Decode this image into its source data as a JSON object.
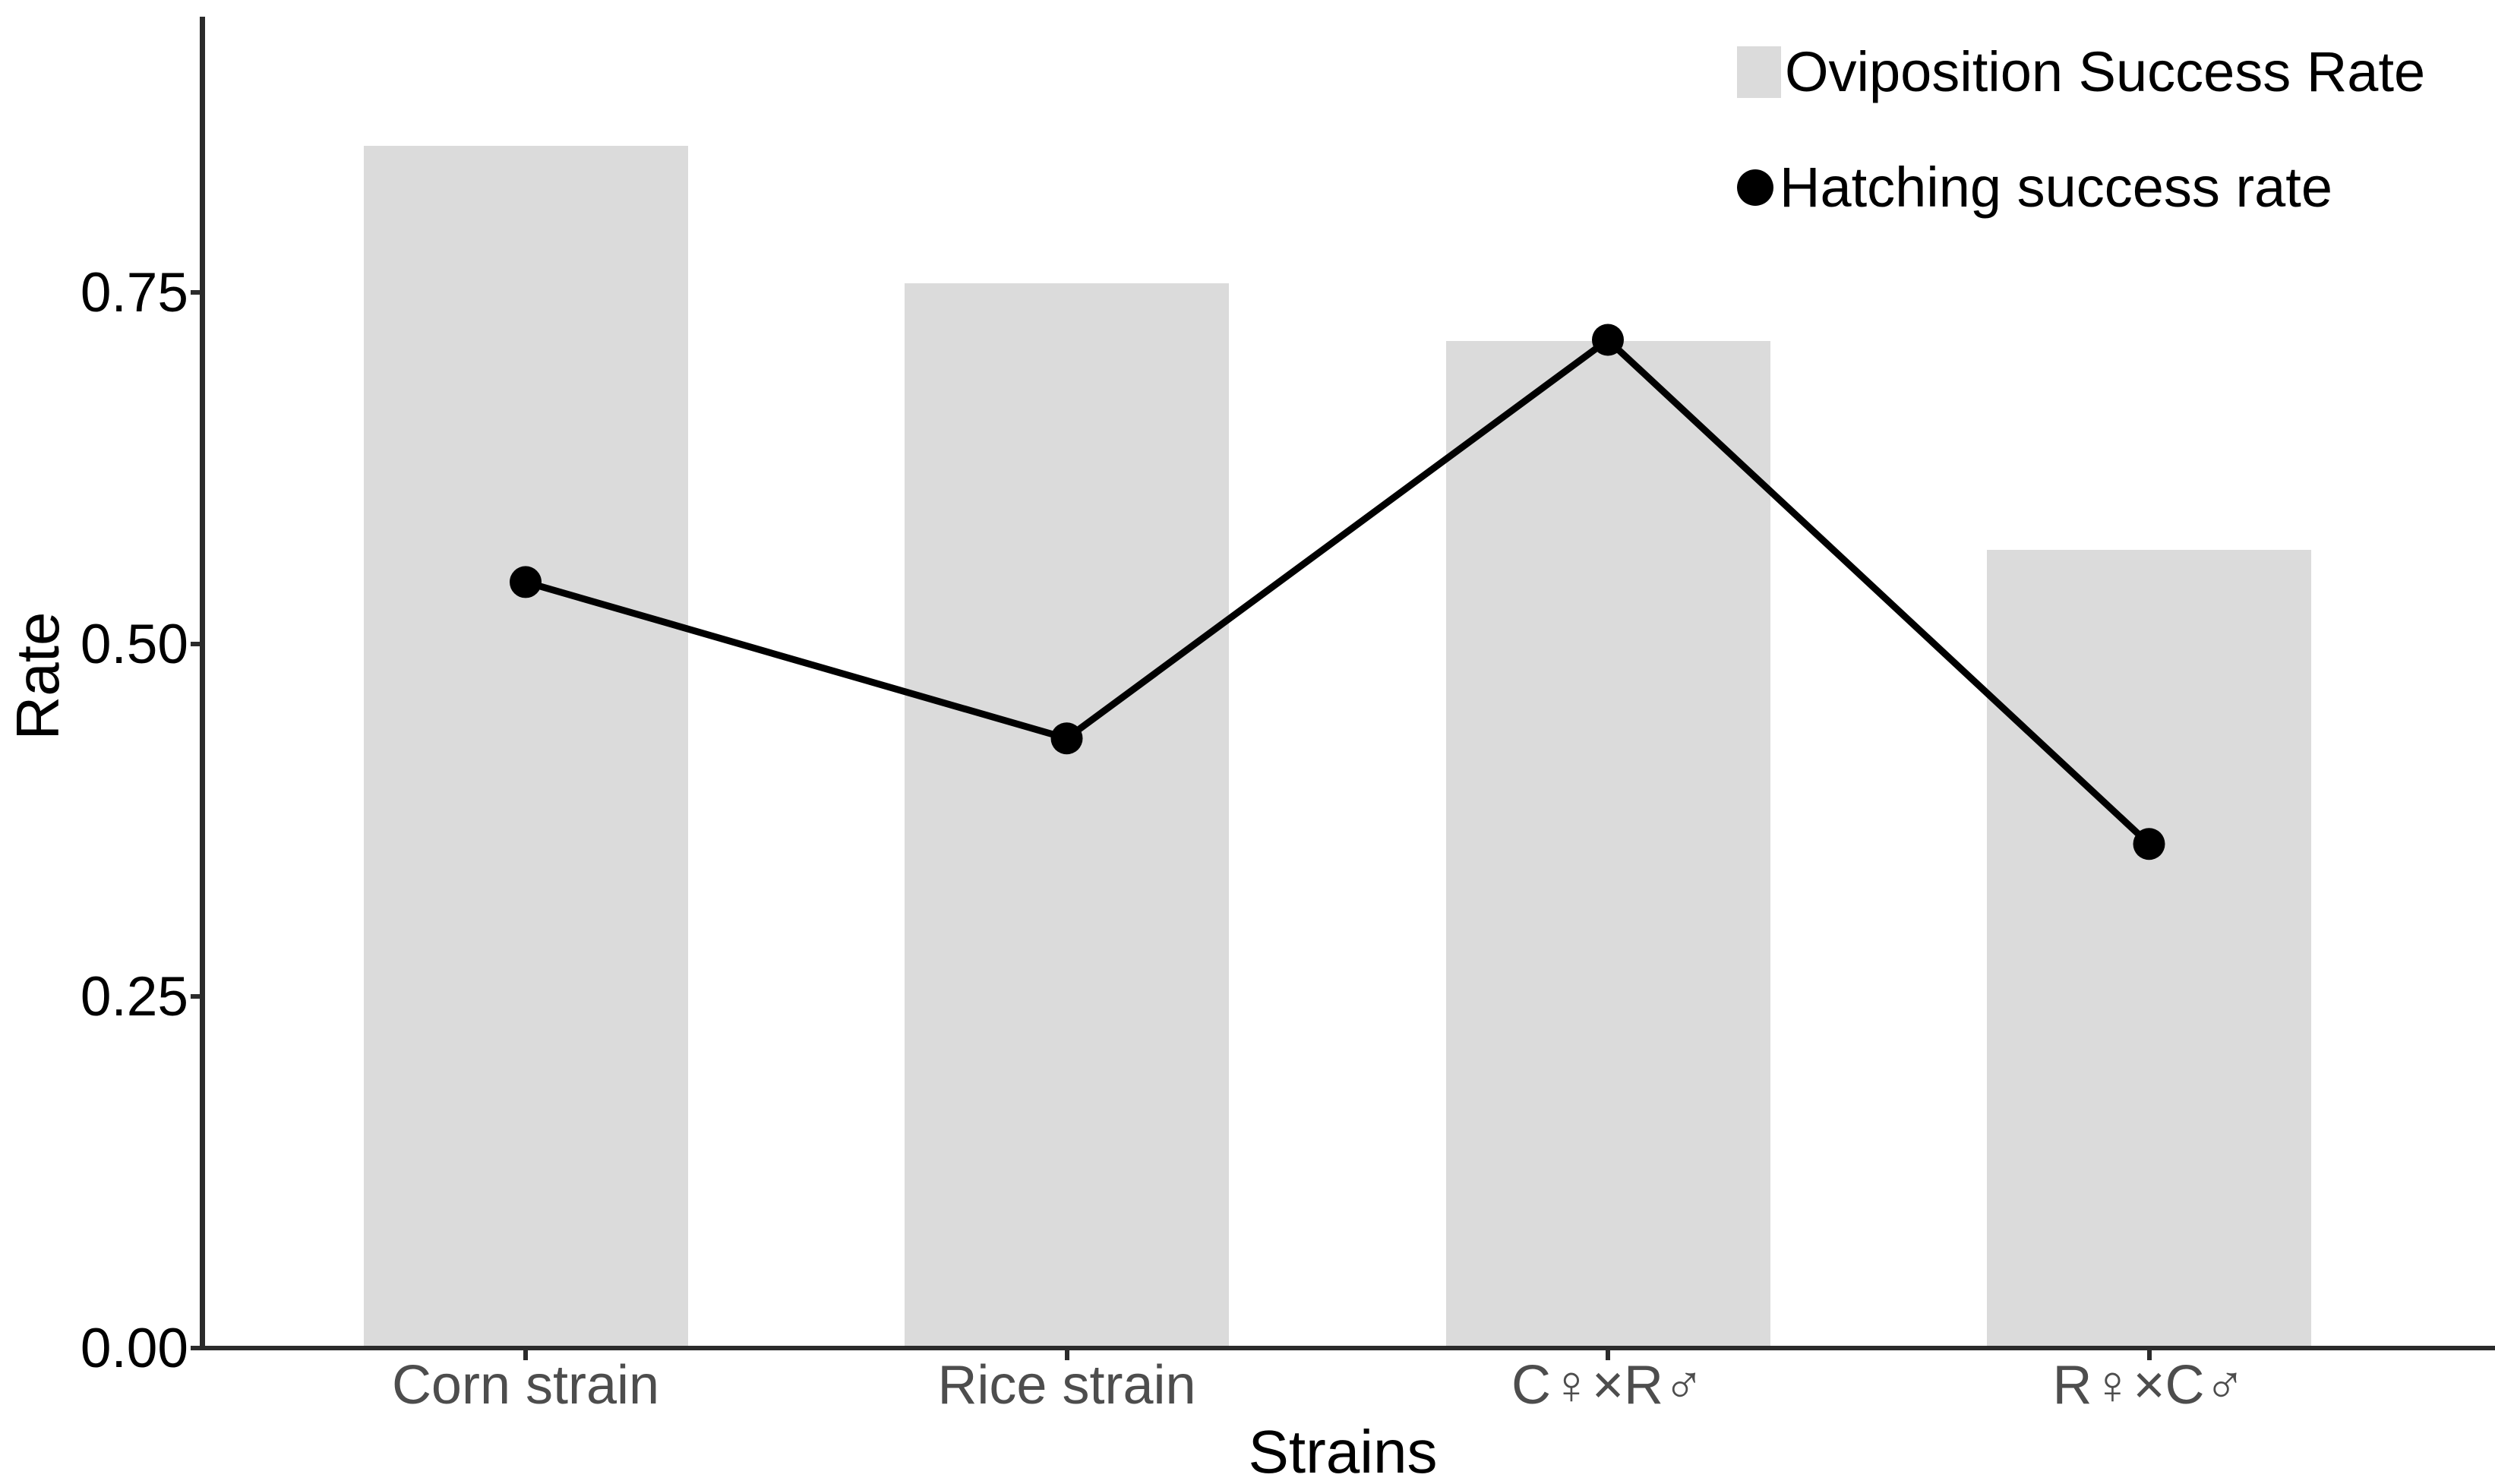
{
  "chart_data": {
    "type": "combo",
    "title": "",
    "xlabel": "Strains",
    "ylabel": "Rate",
    "categories": [
      "Corn strain",
      "Rice strain",
      "C♀×R♂",
      "R♀×C♂"
    ],
    "series": [
      {
        "name": "Oviposition Success Rate",
        "type": "bar",
        "color": "#dbdbdb",
        "values": [
          0.854,
          0.756,
          0.715,
          0.567
        ]
      },
      {
        "name": "Hatching success rate",
        "type": "line",
        "color": "#000000",
        "values": [
          0.544,
          0.433,
          0.716,
          0.358
        ]
      }
    ],
    "y_axis": {
      "ticks": [
        0,
        0.25,
        0.5,
        0.75
      ],
      "tick_labels": [
        "0.00",
        "0.25",
        "0.50",
        "0.75"
      ],
      "range": [
        0,
        0.95
      ]
    },
    "x_axis": {
      "title": "Strains"
    },
    "legend_position": "top-right",
    "grid": false,
    "colors": {
      "bar_fill": "#dbdbdb",
      "line": "#000000",
      "axis_line": "#2b2b2b",
      "y_tick_label": "#000000",
      "x_tick_label": "#4d4d4d",
      "background": "#ffffff"
    }
  }
}
